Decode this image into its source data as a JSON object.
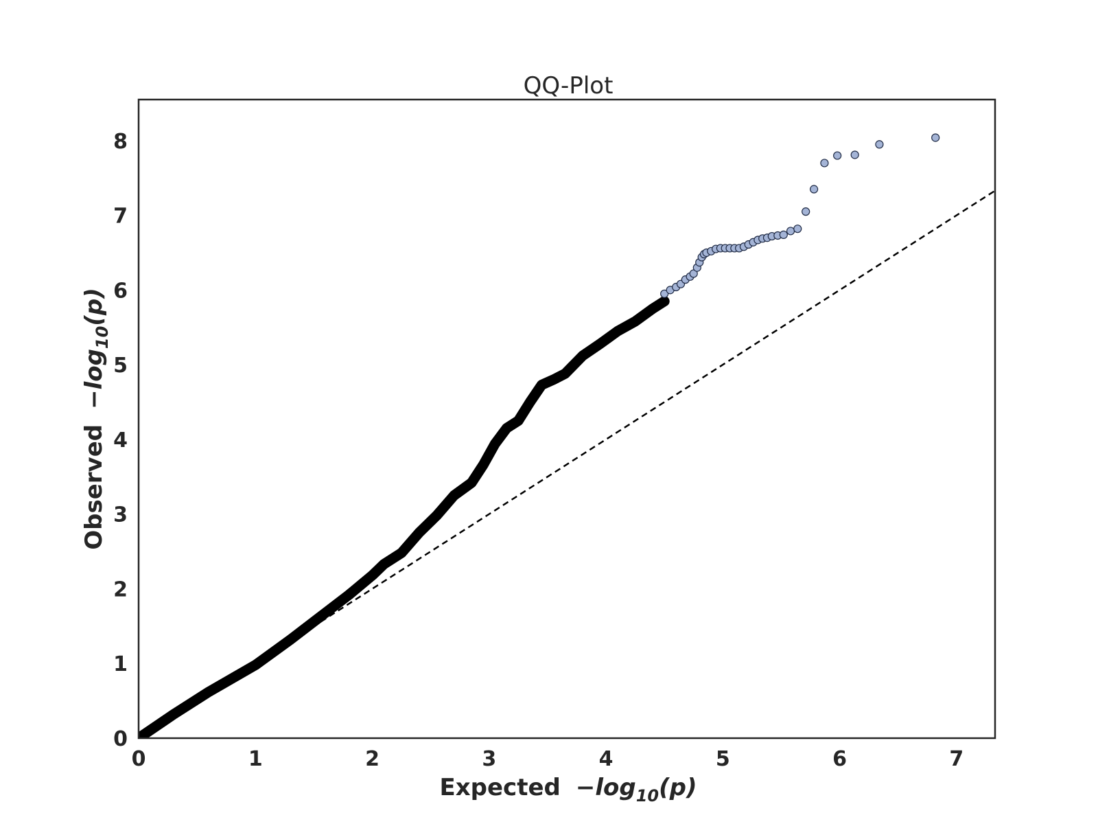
{
  "chart_data": {
    "type": "scatter",
    "title": "QQ-Plot",
    "xlabel": {
      "word": "Expected",
      "expr": "−log",
      "sub": "10",
      "arg": "(p)"
    },
    "ylabel": {
      "word": "Observed",
      "expr": "−log",
      "sub": "10",
      "arg": "(p)"
    },
    "xlim": [
      0,
      7.33
    ],
    "ylim": [
      0,
      8.55
    ],
    "xticks": [
      "0",
      "1",
      "2",
      "3",
      "4",
      "5",
      "6",
      "7"
    ],
    "yticks": [
      "0",
      "1",
      "2",
      "3",
      "4",
      "5",
      "6",
      "7",
      "8"
    ],
    "grid": false,
    "reference_line": {
      "style": "dashed",
      "x": [
        0,
        7.33
      ],
      "y": [
        0,
        7.33
      ]
    },
    "colors": {
      "point_fill": "#a4b4d6",
      "point_edge": "#1f2a44",
      "dense_band": "#000000",
      "reference": "#000000"
    },
    "dense_band_x": [
      0.0,
      0.3,
      0.6,
      1.0,
      1.3,
      1.6,
      1.8,
      2.0,
      2.1,
      2.25,
      2.4,
      2.55,
      2.7,
      2.85,
      2.95,
      3.05,
      3.15,
      3.25,
      3.35,
      3.45,
      3.55,
      3.65,
      3.8,
      3.95,
      4.1,
      4.25,
      4.4,
      4.5
    ],
    "dense_band_y": [
      0.0,
      0.32,
      0.62,
      0.98,
      1.32,
      1.68,
      1.92,
      2.18,
      2.33,
      2.48,
      2.75,
      2.98,
      3.25,
      3.42,
      3.66,
      3.94,
      4.15,
      4.25,
      4.5,
      4.73,
      4.8,
      4.88,
      5.12,
      5.28,
      5.45,
      5.58,
      5.75,
      5.85
    ],
    "x": [
      4.5,
      4.55,
      4.6,
      4.64,
      4.68,
      4.72,
      4.75,
      4.78,
      4.8,
      4.82,
      4.84,
      4.86,
      4.9,
      4.94,
      4.98,
      5.02,
      5.06,
      5.1,
      5.14,
      5.18,
      5.22,
      5.26,
      5.3,
      5.34,
      5.38,
      5.42,
      5.47,
      5.52,
      5.58,
      5.64,
      5.71,
      5.78,
      5.87,
      5.98,
      6.13,
      6.34,
      6.82
    ],
    "y": [
      5.95,
      6.0,
      6.04,
      6.08,
      6.14,
      6.18,
      6.22,
      6.3,
      6.37,
      6.44,
      6.48,
      6.5,
      6.52,
      6.55,
      6.56,
      6.56,
      6.56,
      6.56,
      6.56,
      6.58,
      6.61,
      6.64,
      6.67,
      6.69,
      6.7,
      6.72,
      6.73,
      6.74,
      6.79,
      6.82,
      7.05,
      7.35,
      7.7,
      7.8,
      7.81,
      7.95,
      8.04
    ]
  }
}
